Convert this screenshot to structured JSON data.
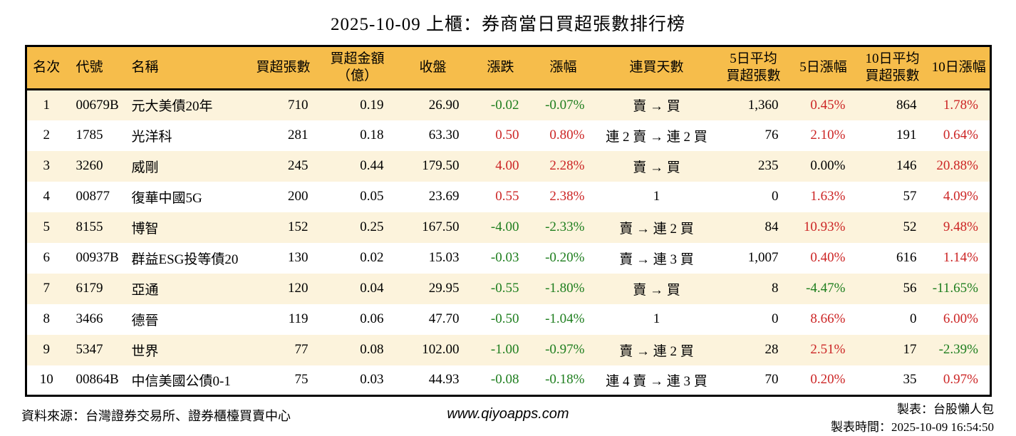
{
  "title": "2025-10-09 上櫃：券商當日買超張數排行榜",
  "colors": {
    "up": "#cc2525",
    "down": "#1e7e1e",
    "header_bg": "#f6bd4b",
    "row_stripe": "#fcf3dc"
  },
  "table": {
    "columns": [
      {
        "label": "名次"
      },
      {
        "label": "代號"
      },
      {
        "label": "名稱"
      },
      {
        "label": "買超張數"
      },
      {
        "label": "買超金額\n（億）"
      },
      {
        "label": "收盤"
      },
      {
        "label": "漲跌"
      },
      {
        "label": "漲幅"
      },
      {
        "label": "連買天數"
      },
      {
        "label": "5日平均\n買超張數"
      },
      {
        "label": "5日漲幅"
      },
      {
        "label": "10日平均\n買超張數"
      },
      {
        "label": "10日漲幅"
      }
    ],
    "rows": [
      {
        "rank": "1",
        "code": "00679B",
        "name": "元大美債20年",
        "net_buy": "710",
        "amount": "0.19",
        "close": "26.90",
        "change": "-0.02",
        "change_pct": "-0.07%",
        "streak": "賣 → 買",
        "avg5": "1,360",
        "pct5": "0.45%",
        "avg10": "864",
        "pct10": "1.78%"
      },
      {
        "rank": "2",
        "code": "1785",
        "name": "光洋科",
        "net_buy": "281",
        "amount": "0.18",
        "close": "63.30",
        "change": "0.50",
        "change_pct": "0.80%",
        "streak": "連 2 賣 → 連 2 買",
        "avg5": "76",
        "pct5": "2.10%",
        "avg10": "191",
        "pct10": "0.64%"
      },
      {
        "rank": "3",
        "code": "3260",
        "name": "威剛",
        "net_buy": "245",
        "amount": "0.44",
        "close": "179.50",
        "change": "4.00",
        "change_pct": "2.28%",
        "streak": "賣 → 買",
        "avg5": "235",
        "pct5": "0.00%",
        "avg10": "146",
        "pct10": "20.88%"
      },
      {
        "rank": "4",
        "code": "00877",
        "name": "復華中國5G",
        "net_buy": "200",
        "amount": "0.05",
        "close": "23.69",
        "change": "0.55",
        "change_pct": "2.38%",
        "streak": "1",
        "avg5": "0",
        "pct5": "1.63%",
        "avg10": "57",
        "pct10": "4.09%"
      },
      {
        "rank": "5",
        "code": "8155",
        "name": "博智",
        "net_buy": "152",
        "amount": "0.25",
        "close": "167.50",
        "change": "-4.00",
        "change_pct": "-2.33%",
        "streak": "賣 → 連 2 買",
        "avg5": "84",
        "pct5": "10.93%",
        "avg10": "52",
        "pct10": "9.48%"
      },
      {
        "rank": "6",
        "code": "00937B",
        "name": "群益ESG投等債20",
        "net_buy": "130",
        "amount": "0.02",
        "close": "15.03",
        "change": "-0.03",
        "change_pct": "-0.20%",
        "streak": "賣 → 連 3 買",
        "avg5": "1,007",
        "pct5": "0.40%",
        "avg10": "616",
        "pct10": "1.14%"
      },
      {
        "rank": "7",
        "code": "6179",
        "name": "亞通",
        "net_buy": "120",
        "amount": "0.04",
        "close": "29.95",
        "change": "-0.55",
        "change_pct": "-1.80%",
        "streak": "賣 → 買",
        "avg5": "8",
        "pct5": "-4.47%",
        "avg10": "56",
        "pct10": "-11.65%"
      },
      {
        "rank": "8",
        "code": "3466",
        "name": "德晉",
        "net_buy": "119",
        "amount": "0.06",
        "close": "47.70",
        "change": "-0.50",
        "change_pct": "-1.04%",
        "streak": "1",
        "avg5": "0",
        "pct5": "8.66%",
        "avg10": "0",
        "pct10": "6.00%"
      },
      {
        "rank": "9",
        "code": "5347",
        "name": "世界",
        "net_buy": "77",
        "amount": "0.08",
        "close": "102.00",
        "change": "-1.00",
        "change_pct": "-0.97%",
        "streak": "賣 → 連 2 買",
        "avg5": "28",
        "pct5": "2.51%",
        "avg10": "17",
        "pct10": "-2.39%"
      },
      {
        "rank": "10",
        "code": "00864B",
        "name": "中信美國公債0-1",
        "net_buy": "75",
        "amount": "0.03",
        "close": "44.93",
        "change": "-0.08",
        "change_pct": "-0.18%",
        "streak": "連 4 賣 → 連 3 買",
        "avg5": "70",
        "pct5": "0.20%",
        "avg10": "35",
        "pct10": "0.97%"
      }
    ]
  },
  "footer": {
    "source": "資料來源：台灣證券交易所、證券櫃檯買賣中心",
    "website": "www.qiyoapps.com",
    "maker": "製表：台股懶人包",
    "time": "製表時間：2025-10-09 16:54:50"
  }
}
